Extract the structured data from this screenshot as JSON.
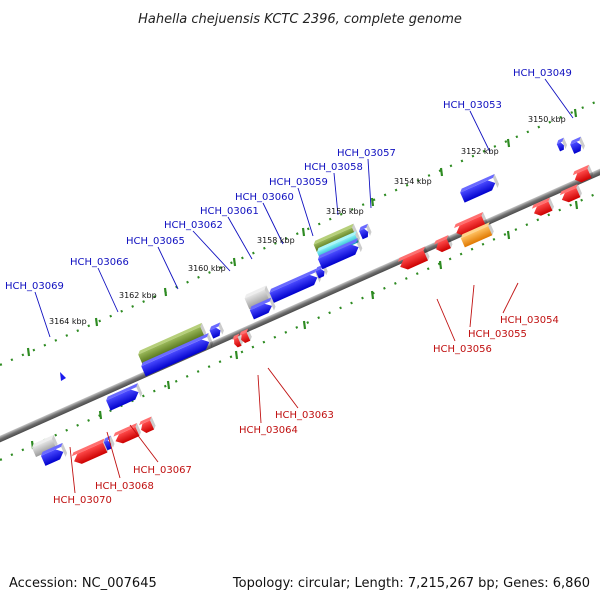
{
  "title": "Hahella chejuensis KCTC 2396, complete genome",
  "footer": {
    "accession": "Accession: NC_007645",
    "summary": "Topology: circular; Length: 7,215,267 bp; Genes: 6,860"
  },
  "scale_labels": [
    "3150 kbp",
    "3152 kbp",
    "3154 kbp",
    "3156 kbp",
    "3158 kbp",
    "3160 kbp",
    "3162 kbp",
    "3164 kbp"
  ],
  "genes_upper": [
    "HCH_03049",
    "HCH_03053",
    "HCH_03057",
    "HCH_03058",
    "HCH_03059",
    "HCH_03060",
    "HCH_03061",
    "HCH_03062",
    "HCH_03065",
    "HCH_03066",
    "HCH_03069"
  ],
  "genes_lower": [
    "HCH_03054",
    "HCH_03055",
    "HCH_03056",
    "HCH_03063",
    "HCH_03064",
    "HCH_03067",
    "HCH_03068",
    "HCH_03070"
  ],
  "colors": {
    "forward": "#1a1aee",
    "reverse": "#ee1111",
    "pseudo": "#bbbbbb",
    "rna": "#6b8e23",
    "cyan": "#22c8d8",
    "orange": "#ff9900",
    "dots": "#2e8b22",
    "axis": "#808080",
    "label_up": "#1010c0",
    "label_dn": "#c01010"
  }
}
